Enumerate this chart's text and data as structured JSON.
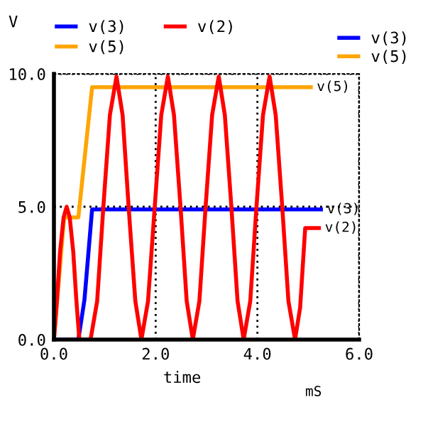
{
  "chart_data": {
    "type": "line",
    "ylabel": "V",
    "xlabel": "time",
    "annotations": [
      "mS",
      "v(3)",
      "v(5)",
      "v(2)"
    ],
    "series": [
      {
        "name": "v(3)",
        "color": "#0000ff",
        "x": [
          0,
          0.48,
          0.6,
          0.75,
          5.25
        ],
        "values": [
          0,
          0,
          1.5,
          4.9,
          4.9
        ]
      },
      {
        "name": "v(5)",
        "color": "#ffa500",
        "x": [
          0,
          0.2,
          0.48,
          0.75,
          5.05
        ],
        "values": [
          0,
          4.6,
          4.6,
          9.5,
          9.5
        ]
      },
      {
        "name": "v(2)",
        "color": "#ff0000",
        "x": [
          0,
          0.06,
          0.12,
          0.19,
          0.25,
          0.31,
          0.38,
          0.44,
          0.5,
          0.72,
          0.85,
          0.97,
          1.1,
          1.23,
          1.35,
          1.47,
          1.6,
          1.72,
          1.85,
          1.98,
          2.11,
          2.24,
          2.36,
          2.49,
          2.61,
          2.73,
          2.86,
          2.98,
          3.11,
          3.24,
          3.36,
          3.49,
          3.61,
          3.73,
          3.86,
          3.98,
          4.11,
          4.24,
          4.36,
          4.49,
          4.61,
          4.74,
          4.84,
          4.94,
          5.21
        ],
        "values": [
          0,
          1.5,
          3.3,
          4.6,
          5.0,
          4.6,
          3.3,
          1.5,
          0,
          0,
          1.45,
          4.95,
          8.45,
          9.9,
          8.45,
          4.95,
          1.45,
          0,
          1.45,
          4.95,
          8.45,
          9.9,
          8.45,
          4.95,
          1.45,
          0,
          1.45,
          4.95,
          8.45,
          9.9,
          8.45,
          4.95,
          1.45,
          0,
          1.45,
          4.95,
          8.45,
          9.9,
          8.45,
          4.95,
          1.45,
          0,
          1.2,
          4.2,
          4.2
        ]
      }
    ],
    "xlim": [
      0,
      6
    ],
    "xticks": [
      {
        "value": 0,
        "label": "0.0"
      },
      {
        "value": 2,
        "label": "2.0"
      },
      {
        "value": 4,
        "label": "4.0"
      },
      {
        "value": 6,
        "label": "6.0"
      }
    ],
    "ylim": [
      0,
      10
    ],
    "yticks": [
      {
        "value": 0,
        "label": "0.0"
      },
      {
        "value": 5,
        "label": "5.0"
      },
      {
        "value": 10,
        "label": "10.0"
      }
    ],
    "grid": true,
    "legend": "top",
    "line_style": "solid"
  }
}
